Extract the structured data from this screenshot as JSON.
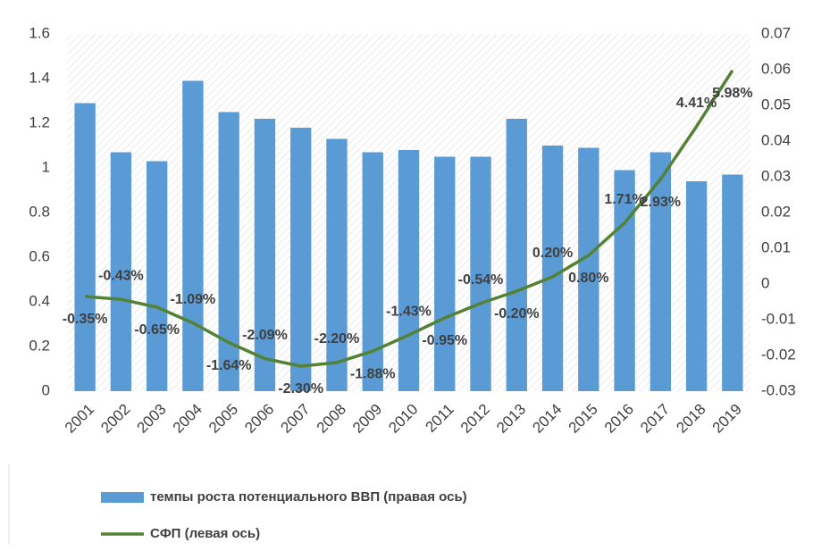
{
  "chart_data": {
    "type": "bar",
    "categories": [
      "2001",
      "2002",
      "2003",
      "2004",
      "2005",
      "2006",
      "2007",
      "2008",
      "2009",
      "2010",
      "2011",
      "2012",
      "2013",
      "2014",
      "2015",
      "2016",
      "2017",
      "2018",
      "2019"
    ],
    "series": [
      {
        "name": "темпы роста потенциального ВВП (правая ось)",
        "type": "bar",
        "color": "#5b9bd5",
        "values": [
          1.29,
          1.07,
          1.03,
          1.39,
          1.25,
          1.22,
          1.18,
          1.13,
          1.07,
          1.08,
          1.05,
          1.05,
          1.22,
          1.1,
          1.09,
          0.99,
          1.07,
          0.94,
          0.97
        ]
      },
      {
        "name": "СФП (левая ось)",
        "type": "line",
        "axis": "y2",
        "color": "#548235",
        "values": [
          -0.0035,
          -0.0043,
          -0.0065,
          -0.0109,
          -0.0164,
          -0.0209,
          -0.023,
          -0.022,
          -0.0188,
          -0.0143,
          -0.0095,
          -0.0054,
          -0.002,
          0.002,
          0.008,
          0.0171,
          0.0293,
          0.0441,
          0.0598
        ],
        "value_labels": [
          "-0.35%",
          "-0.43%",
          "-0.65%",
          "-1.09%",
          "-1.64%",
          "-2.09%",
          "-2.30%",
          "-2.20%",
          "-1.88%",
          "-1.43%",
          "-0.95%",
          "-0.54%",
          "-0.20%",
          "0.20%",
          "0.80%",
          "1.71%",
          "2.93%",
          "4.41%",
          "5.98%"
        ]
      }
    ],
    "ylim": [
      0,
      1.6
    ],
    "yticks": [
      0,
      0.2,
      0.4,
      0.6,
      0.8,
      1,
      1.2,
      1.4,
      1.6
    ],
    "y2lim": [
      -0.03,
      0.07
    ],
    "y2ticks": [
      -0.03,
      -0.02,
      -0.01,
      0,
      0.01,
      0.02,
      0.03,
      0.04,
      0.05,
      0.06,
      0.07
    ],
    "legend": "bottom"
  }
}
